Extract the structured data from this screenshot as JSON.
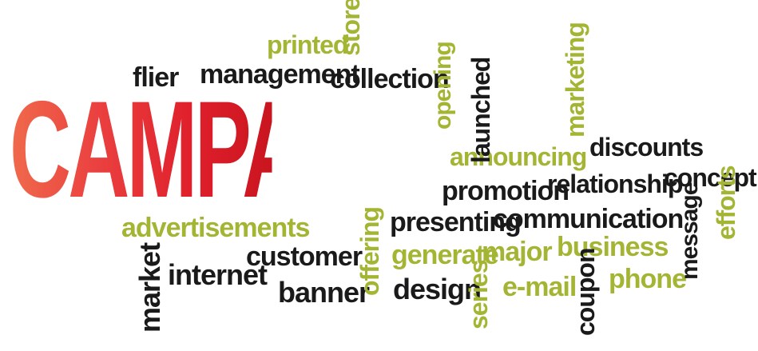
{
  "headline": "CAMPAIGN",
  "words": {
    "flier": "flier",
    "management": "management",
    "collection": "collection",
    "printed": "printed",
    "store": "store",
    "opening": "opening",
    "launched": "launched",
    "marketing": "marketing",
    "announcing": "announcing",
    "discounts": "discounts",
    "promotion": "promotion",
    "relationship": "relationship",
    "concept": "concept",
    "advertisements": "advertisements",
    "presenting": "presenting",
    "communication": "communication",
    "offering": "offering",
    "business": "business",
    "message": "message",
    "efforts": "efforts",
    "market": "market",
    "internet": "internet",
    "customer": "customer",
    "generate": "generate",
    "major": "major",
    "banner": "banner",
    "design": "design",
    "series": "series",
    "email": "e-mail",
    "coupon": "coupon",
    "phone": "phone"
  },
  "colors": {
    "dark": "#1a1a1a",
    "green": "#a4b534",
    "red_start": "#f06a4c",
    "red_end": "#c9151f",
    "background": "#ffffff"
  }
}
